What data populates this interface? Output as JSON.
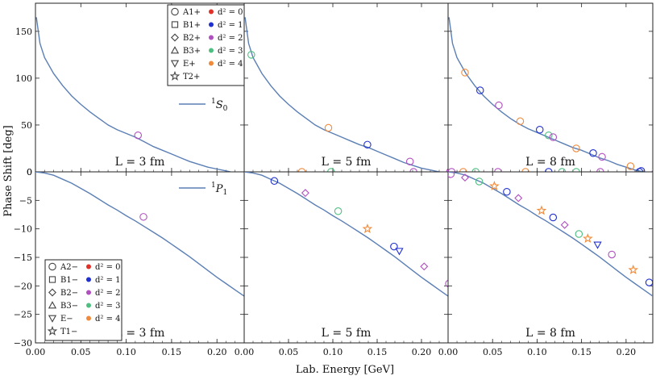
{
  "figure": {
    "ylabel": "Phase Shift [deg]",
    "xlabel": "Lab. Energy [GeV]"
  },
  "colors": {
    "curve": "#5b7fb5",
    "d2_0": "#e0302a",
    "d2_1": "#1f2fd0",
    "d2_2": "#b04fc0",
    "d2_3": "#4dbf80",
    "d2_4": "#f08a3a"
  },
  "legend_top": {
    "irreps": [
      "A_1^+",
      "B_1^+",
      "B_2^+",
      "B_3^+",
      "E^+",
      "T_2^+"
    ],
    "irrep_text": [
      "A1+",
      "B1+",
      "B2+",
      "B3+",
      "E+",
      "T2+"
    ],
    "markers": [
      "circle",
      "square",
      "diamond",
      "triangle-up",
      "triangle-down",
      "star"
    ],
    "d2": [
      "d² = 0",
      "d² = 1",
      "d² = 2",
      "d² = 3",
      "d² = 4"
    ]
  },
  "legend_bottom": {
    "irreps": [
      "A_2^-",
      "B_1^-",
      "B_2^-",
      "B_3^-",
      "E^-",
      "T_1^-"
    ],
    "irrep_text": [
      "A2−",
      "B1−",
      "B2−",
      "B3−",
      "E−",
      "T1−"
    ],
    "markers": [
      "circle",
      "square",
      "diamond",
      "triangle-up",
      "triangle-down",
      "star"
    ],
    "d2": [
      "d² = 0",
      "d² = 1",
      "d² = 2",
      "d² = 3",
      "d² = 4"
    ]
  },
  "chart_data": [
    {
      "type": "scatter",
      "panel": "top-left",
      "curve_label": "1S0",
      "box_label": "L = 3 fm",
      "xlim": [
        0,
        0.23
      ],
      "ylim": [
        0,
        180
      ],
      "xticks": [
        "0.00",
        "0.05",
        "0.10",
        "0.15",
        "0.20"
      ],
      "yticks": [
        "0",
        "50",
        "100",
        "150"
      ],
      "curve": [
        [
          0.001,
          165
        ],
        [
          0.005,
          137
        ],
        [
          0.01,
          122
        ],
        [
          0.02,
          105
        ],
        [
          0.03,
          92
        ],
        [
          0.04,
          81
        ],
        [
          0.05,
          72
        ],
        [
          0.06,
          64
        ],
        [
          0.07,
          57
        ],
        [
          0.08,
          50
        ],
        [
          0.09,
          45
        ],
        [
          0.1,
          41
        ],
        [
          0.11,
          37
        ],
        [
          0.12,
          32
        ],
        [
          0.13,
          27
        ],
        [
          0.14,
          23
        ],
        [
          0.15,
          19
        ],
        [
          0.16,
          15
        ],
        [
          0.17,
          11
        ],
        [
          0.18,
          8
        ],
        [
          0.19,
          5
        ],
        [
          0.2,
          3
        ],
        [
          0.21,
          1
        ],
        [
          0.215,
          0
        ]
      ],
      "points": [
        {
          "x": 0.113,
          "y": 39,
          "marker": "circle",
          "color": "d2_2"
        }
      ]
    },
    {
      "type": "scatter",
      "panel": "top-middle",
      "box_label": "L = 5 fm",
      "xlim": [
        0,
        0.23
      ],
      "ylim": [
        0,
        180
      ],
      "curve": [
        [
          0.001,
          165
        ],
        [
          0.005,
          137
        ],
        [
          0.01,
          122
        ],
        [
          0.02,
          105
        ],
        [
          0.03,
          92
        ],
        [
          0.04,
          81
        ],
        [
          0.05,
          72
        ],
        [
          0.06,
          64
        ],
        [
          0.07,
          57
        ],
        [
          0.08,
          50
        ],
        [
          0.09,
          45
        ],
        [
          0.1,
          41
        ],
        [
          0.11,
          37
        ],
        [
          0.12,
          33
        ],
        [
          0.13,
          29
        ],
        [
          0.14,
          26
        ],
        [
          0.15,
          22
        ],
        [
          0.16,
          18
        ],
        [
          0.17,
          14
        ],
        [
          0.18,
          10
        ],
        [
          0.19,
          7
        ],
        [
          0.2,
          4
        ],
        [
          0.21,
          2
        ],
        [
          0.22,
          0
        ]
      ],
      "points": [
        {
          "x": 0.008,
          "y": 125,
          "marker": "circle",
          "color": "d2_3"
        },
        {
          "x": 0.095,
          "y": 47,
          "marker": "circle",
          "color": "d2_4"
        },
        {
          "x": 0.139,
          "y": 29,
          "marker": "circle",
          "color": "d2_1"
        },
        {
          "x": 0.187,
          "y": 11,
          "marker": "circle",
          "color": "d2_2"
        },
        {
          "x": 0.065,
          "y": 0,
          "marker": "circle",
          "color": "d2_4"
        },
        {
          "x": 0.098,
          "y": 0,
          "marker": "circle",
          "color": "d2_3"
        },
        {
          "x": 0.191,
          "y": 0,
          "marker": "circle",
          "color": "d2_2"
        },
        {
          "x": 0.232,
          "y": 0,
          "marker": "circle",
          "color": "d2_2"
        }
      ]
    },
    {
      "type": "scatter",
      "panel": "top-right",
      "box_label": "L = 8 fm",
      "xlim": [
        0,
        0.23
      ],
      "ylim": [
        0,
        180
      ],
      "curve": [
        [
          0.001,
          165
        ],
        [
          0.005,
          137
        ],
        [
          0.01,
          122
        ],
        [
          0.02,
          105
        ],
        [
          0.03,
          92
        ],
        [
          0.04,
          81
        ],
        [
          0.05,
          72
        ],
        [
          0.06,
          64
        ],
        [
          0.07,
          57
        ],
        [
          0.08,
          51
        ],
        [
          0.09,
          46
        ],
        [
          0.1,
          42
        ],
        [
          0.11,
          38
        ],
        [
          0.12,
          34
        ],
        [
          0.13,
          30
        ],
        [
          0.14,
          26
        ],
        [
          0.15,
          23
        ],
        [
          0.16,
          19
        ],
        [
          0.17,
          15
        ],
        [
          0.18,
          12
        ],
        [
          0.19,
          8
        ],
        [
          0.2,
          5
        ],
        [
          0.21,
          2
        ],
        [
          0.22,
          0
        ]
      ],
      "points": [
        {
          "x": 0.019,
          "y": 106,
          "marker": "circle",
          "color": "d2_4"
        },
        {
          "x": 0.036,
          "y": 87,
          "marker": "circle",
          "color": "d2_1"
        },
        {
          "x": 0.057,
          "y": 71,
          "marker": "circle",
          "color": "d2_2"
        },
        {
          "x": 0.081,
          "y": 54,
          "marker": "circle",
          "color": "d2_4"
        },
        {
          "x": 0.103,
          "y": 45,
          "marker": "circle",
          "color": "d2_1"
        },
        {
          "x": 0.113,
          "y": 39,
          "marker": "circle",
          "color": "d2_3"
        },
        {
          "x": 0.118,
          "y": 37,
          "marker": "circle",
          "color": "d2_2"
        },
        {
          "x": 0.144,
          "y": 25,
          "marker": "circle",
          "color": "d2_4"
        },
        {
          "x": 0.163,
          "y": 20,
          "marker": "circle",
          "color": "d2_1"
        },
        {
          "x": 0.173,
          "y": 16,
          "marker": "circle",
          "color": "d2_2"
        },
        {
          "x": 0.205,
          "y": 6,
          "marker": "circle",
          "color": "d2_4"
        },
        {
          "x": 0.217,
          "y": 1,
          "marker": "circle",
          "color": "d2_1"
        },
        {
          "x": 0.004,
          "y": 0,
          "marker": "circle",
          "color": "d2_2"
        },
        {
          "x": 0.017,
          "y": 0,
          "marker": "circle",
          "color": "d2_4"
        },
        {
          "x": 0.031,
          "y": 0,
          "marker": "circle",
          "color": "d2_3"
        },
        {
          "x": 0.056,
          "y": 0,
          "marker": "circle",
          "color": "d2_2"
        },
        {
          "x": 0.087,
          "y": 0,
          "marker": "circle",
          "color": "d2_4"
        },
        {
          "x": 0.113,
          "y": 0,
          "marker": "circle",
          "color": "d2_1"
        },
        {
          "x": 0.128,
          "y": 0,
          "marker": "circle",
          "color": "d2_3"
        },
        {
          "x": 0.144,
          "y": 0,
          "marker": "circle",
          "color": "d2_3"
        },
        {
          "x": 0.171,
          "y": 0,
          "marker": "circle",
          "color": "d2_2"
        },
        {
          "x": 0.215,
          "y": 0,
          "marker": "circle",
          "color": "d2_1"
        },
        {
          "x": 0.233,
          "y": 0,
          "marker": "circle",
          "color": "d2_2"
        }
      ]
    },
    {
      "type": "scatter",
      "panel": "bottom-left",
      "curve_label": "1P1",
      "box_label": "L = 3 fm",
      "xlim": [
        0,
        0.23
      ],
      "ylim": [
        -30,
        0
      ],
      "xticks": [
        "0.00",
        "0.05",
        "0.10",
        "0.15",
        "0.20"
      ],
      "yticks": [
        "0",
        "−5",
        "−10",
        "−15",
        "−20",
        "−25",
        "−30"
      ],
      "curve": [
        [
          0,
          0
        ],
        [
          0.01,
          -0.2
        ],
        [
          0.02,
          -0.6
        ],
        [
          0.03,
          -1.3
        ],
        [
          0.04,
          -2.0
        ],
        [
          0.05,
          -2.9
        ],
        [
          0.06,
          -3.8
        ],
        [
          0.07,
          -4.8
        ],
        [
          0.08,
          -5.8
        ],
        [
          0.09,
          -6.7
        ],
        [
          0.1,
          -7.7
        ],
        [
          0.11,
          -8.6
        ],
        [
          0.12,
          -9.6
        ],
        [
          0.13,
          -10.6
        ],
        [
          0.14,
          -11.6
        ],
        [
          0.15,
          -12.7
        ],
        [
          0.16,
          -13.8
        ],
        [
          0.17,
          -14.9
        ],
        [
          0.18,
          -16.1
        ],
        [
          0.19,
          -17.3
        ],
        [
          0.2,
          -18.5
        ],
        [
          0.21,
          -19.6
        ],
        [
          0.22,
          -20.7
        ],
        [
          0.23,
          -21.8
        ]
      ],
      "points": [
        {
          "x": 0.119,
          "y": -7.9,
          "marker": "circle",
          "color": "d2_2"
        }
      ]
    },
    {
      "type": "scatter",
      "panel": "bottom-middle",
      "box_label": "L = 5 fm",
      "xlim": [
        0,
        0.23
      ],
      "ylim": [
        -30,
        0
      ],
      "curve": [
        [
          0,
          0
        ],
        [
          0.01,
          -0.2
        ],
        [
          0.02,
          -0.6
        ],
        [
          0.03,
          -1.3
        ],
        [
          0.04,
          -2.0
        ],
        [
          0.05,
          -2.9
        ],
        [
          0.06,
          -3.8
        ],
        [
          0.07,
          -4.8
        ],
        [
          0.08,
          -5.8
        ],
        [
          0.09,
          -6.7
        ],
        [
          0.1,
          -7.7
        ],
        [
          0.11,
          -8.6
        ],
        [
          0.12,
          -9.6
        ],
        [
          0.13,
          -10.6
        ],
        [
          0.14,
          -11.6
        ],
        [
          0.15,
          -12.7
        ],
        [
          0.16,
          -13.8
        ],
        [
          0.17,
          -14.9
        ],
        [
          0.18,
          -16.1
        ],
        [
          0.19,
          -17.3
        ],
        [
          0.2,
          -18.5
        ],
        [
          0.21,
          -19.6
        ],
        [
          0.22,
          -20.7
        ],
        [
          0.23,
          -21.8
        ]
      ],
      "points": [
        {
          "x": 0.034,
          "y": -1.6,
          "marker": "circle",
          "color": "d2_1"
        },
        {
          "x": 0.069,
          "y": -3.7,
          "marker": "diamond",
          "color": "d2_2"
        },
        {
          "x": 0.106,
          "y": -6.9,
          "marker": "circle",
          "color": "d2_3"
        },
        {
          "x": 0.139,
          "y": -10.0,
          "marker": "star",
          "color": "d2_4"
        },
        {
          "x": 0.169,
          "y": -13.1,
          "marker": "circle",
          "color": "d2_1"
        },
        {
          "x": 0.175,
          "y": -13.9,
          "marker": "triangle-down",
          "color": "d2_1"
        },
        {
          "x": 0.203,
          "y": -16.6,
          "marker": "diamond",
          "color": "d2_2"
        },
        {
          "x": 0.231,
          "y": -19.6,
          "marker": "circle",
          "color": "d2_2"
        }
      ]
    },
    {
      "type": "scatter",
      "panel": "bottom-right",
      "box_label": "L = 8 fm",
      "xlim": [
        0,
        0.23
      ],
      "ylim": [
        -30,
        0
      ],
      "curve": [
        [
          0,
          0
        ],
        [
          0.01,
          -0.2
        ],
        [
          0.02,
          -0.6
        ],
        [
          0.03,
          -1.3
        ],
        [
          0.04,
          -2.0
        ],
        [
          0.05,
          -2.9
        ],
        [
          0.06,
          -3.8
        ],
        [
          0.07,
          -4.8
        ],
        [
          0.08,
          -5.8
        ],
        [
          0.09,
          -6.7
        ],
        [
          0.1,
          -7.7
        ],
        [
          0.11,
          -8.6
        ],
        [
          0.12,
          -9.6
        ],
        [
          0.13,
          -10.6
        ],
        [
          0.14,
          -11.6
        ],
        [
          0.15,
          -12.7
        ],
        [
          0.16,
          -13.8
        ],
        [
          0.17,
          -14.9
        ],
        [
          0.18,
          -16.1
        ],
        [
          0.19,
          -17.3
        ],
        [
          0.2,
          -18.5
        ],
        [
          0.21,
          -19.6
        ],
        [
          0.22,
          -20.7
        ],
        [
          0.23,
          -21.8
        ]
      ],
      "points": [
        {
          "x": 0.003,
          "y": -0.4,
          "marker": "circle",
          "color": "d2_2"
        },
        {
          "x": 0.019,
          "y": -1.0,
          "marker": "diamond",
          "color": "d2_2"
        },
        {
          "x": 0.035,
          "y": -1.7,
          "marker": "circle",
          "color": "d2_3"
        },
        {
          "x": 0.052,
          "y": -2.5,
          "marker": "star",
          "color": "d2_4"
        },
        {
          "x": 0.066,
          "y": -3.5,
          "marker": "circle",
          "color": "d2_1"
        },
        {
          "x": 0.079,
          "y": -4.6,
          "marker": "diamond",
          "color": "d2_2"
        },
        {
          "x": 0.105,
          "y": -6.8,
          "marker": "star",
          "color": "d2_4"
        },
        {
          "x": 0.118,
          "y": -8.0,
          "marker": "circle",
          "color": "d2_1"
        },
        {
          "x": 0.131,
          "y": -9.3,
          "marker": "diamond",
          "color": "d2_2"
        },
        {
          "x": 0.147,
          "y": -10.9,
          "marker": "circle",
          "color": "d2_3"
        },
        {
          "x": 0.157,
          "y": -11.7,
          "marker": "star",
          "color": "d2_4"
        },
        {
          "x": 0.168,
          "y": -12.8,
          "marker": "triangle-down",
          "color": "d2_1"
        },
        {
          "x": 0.184,
          "y": -14.5,
          "marker": "circle",
          "color": "d2_2"
        },
        {
          "x": 0.208,
          "y": -17.2,
          "marker": "star",
          "color": "d2_4"
        },
        {
          "x": 0.226,
          "y": -19.4,
          "marker": "circle",
          "color": "d2_1"
        }
      ]
    }
  ]
}
